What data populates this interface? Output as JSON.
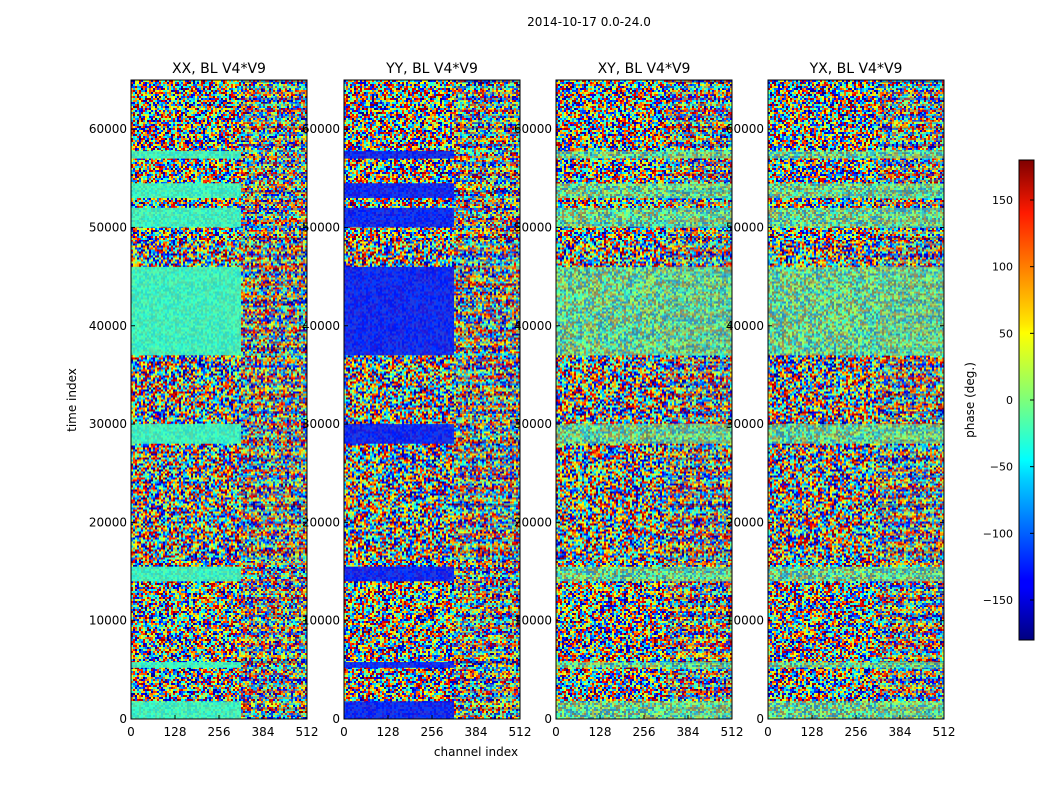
{
  "suptitle": "2014-10-17 0.0-24.0",
  "chart_data": {
    "type": "heatmap",
    "title": "2014-10-17 0.0-24.0",
    "xlabel": "channel index",
    "ylabel": "time index",
    "xlim": [
      0,
      512
    ],
    "ylim": [
      0,
      65000
    ],
    "xticks": [
      0,
      128,
      256,
      384,
      512
    ],
    "yticks": [
      0,
      10000,
      20000,
      30000,
      40000,
      50000,
      60000
    ],
    "ytick_labels": [
      "0",
      "10000",
      "20000",
      "30000",
      "40000",
      "50000",
      "60000"
    ],
    "panels": [
      {
        "title": "XX, BL V4*V9",
        "flat_phase_deg": -25
      },
      {
        "title": "YY, BL V4*V9",
        "flat_phase_deg": -125
      },
      {
        "title": "XY, BL V4*V9",
        "flat_phase_deg": null
      },
      {
        "title": "YX, BL V4*V9",
        "flat_phase_deg": null
      }
    ],
    "flagged_bands": [
      [
        0,
        1800
      ],
      [
        5200,
        5800
      ],
      [
        14000,
        15500
      ],
      [
        28000,
        30000
      ],
      [
        37000,
        46000
      ],
      [
        50000,
        52000
      ],
      [
        53000,
        54500
      ],
      [
        57000,
        57800
      ]
    ],
    "colorbar": {
      "label": "phase (deg.)",
      "range": [
        -180,
        180
      ],
      "ticks": [
        -150,
        -100,
        -50,
        0,
        50,
        100,
        150
      ],
      "tick_labels": [
        "−150",
        "−100",
        "−50",
        "0",
        "50",
        "100",
        "150"
      ],
      "colormap": "jet"
    }
  }
}
